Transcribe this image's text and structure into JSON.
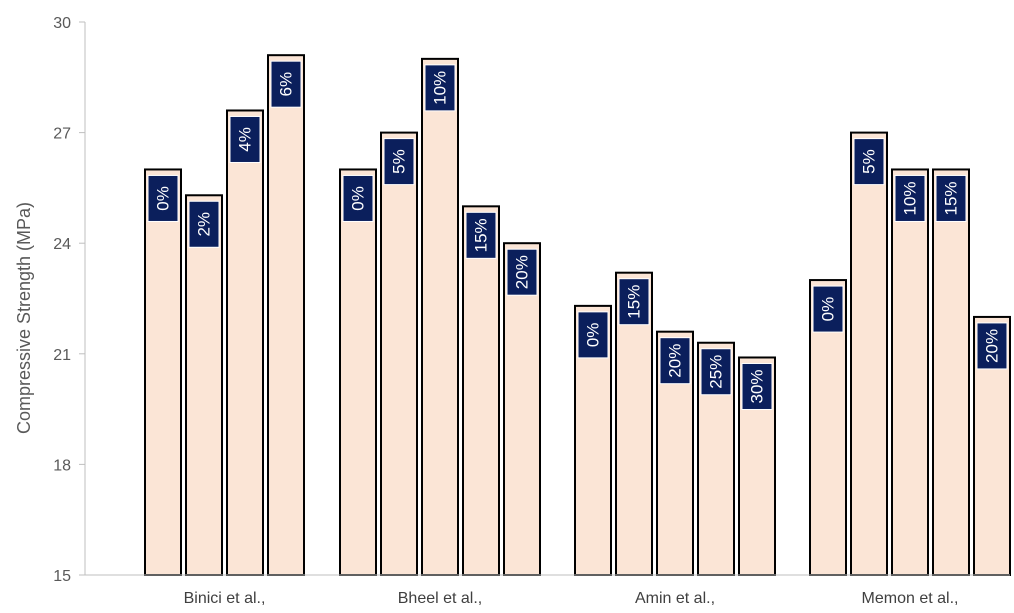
{
  "chart_data": {
    "type": "bar",
    "title": "",
    "xlabel": "",
    "ylabel": "Compressive Strength (MPa)",
    "ylim": [
      15,
      30
    ],
    "yticks": [
      15,
      18,
      21,
      24,
      27,
      30
    ],
    "grid": false,
    "legend": "none",
    "colors": {
      "bar_fill": "#FBE5D6",
      "bar_stroke": "#000000",
      "label_fill": "#0B1F5C",
      "label_text": "#FFFFFF",
      "axis": "#BFBFBF"
    },
    "groups": [
      {
        "name": "Binici et al.,",
        "bars": [
          {
            "label": "0%",
            "value": 26.0
          },
          {
            "label": "2%",
            "value": 25.3
          },
          {
            "label": "4%",
            "value": 27.6
          },
          {
            "label": "6%",
            "value": 29.1
          }
        ]
      },
      {
        "name": "Bheel et al.,",
        "bars": [
          {
            "label": "0%",
            "value": 26.0
          },
          {
            "label": "5%",
            "value": 27.0
          },
          {
            "label": "10%",
            "value": 29.0
          },
          {
            "label": "15%",
            "value": 25.0
          },
          {
            "label": "20%",
            "value": 24.0
          }
        ]
      },
      {
        "name": "Amin et al.,",
        "bars": [
          {
            "label": "0%",
            "value": 22.3
          },
          {
            "label": "15%",
            "value": 23.2
          },
          {
            "label": "20%",
            "value": 21.6
          },
          {
            "label": "25%",
            "value": 21.3
          },
          {
            "label": "30%",
            "value": 20.9
          }
        ]
      },
      {
        "name": "Memon et al.,",
        "bars": [
          {
            "label": "0%",
            "value": 23.0
          },
          {
            "label": "5%",
            "value": 27.0
          },
          {
            "label": "10%",
            "value": 26.0
          },
          {
            "label": "15%",
            "value": 26.0
          },
          {
            "label": "20%",
            "value": 22.0
          }
        ]
      }
    ]
  }
}
